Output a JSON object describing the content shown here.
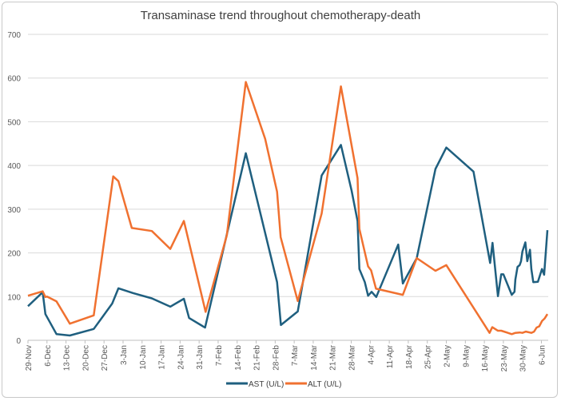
{
  "chart_data": {
    "type": "line",
    "title": "Transaminase trend throughout chemotherapy-death",
    "xlabel": "",
    "ylabel": "",
    "x_unit": "days since 29-Nov",
    "xlim": [
      0,
      191.5
    ],
    "ylim": [
      0,
      700
    ],
    "yticks": [
      0,
      100,
      200,
      300,
      400,
      500,
      600,
      700
    ],
    "xticks": [
      {
        "day": 0,
        "label": "29-Nov"
      },
      {
        "day": 7,
        "label": "6-Dec"
      },
      {
        "day": 14,
        "label": "13-Dec"
      },
      {
        "day": 21,
        "label": "20-Dec"
      },
      {
        "day": 28,
        "label": "27-Dec"
      },
      {
        "day": 35,
        "label": "3-Jan"
      },
      {
        "day": 42,
        "label": "10-Jan"
      },
      {
        "day": 49,
        "label": "17-Jan"
      },
      {
        "day": 56,
        "label": "24-Jan"
      },
      {
        "day": 63,
        "label": "31-Jan"
      },
      {
        "day": 70,
        "label": "7-Feb"
      },
      {
        "day": 77,
        "label": "14-Feb"
      },
      {
        "day": 84,
        "label": "21-Feb"
      },
      {
        "day": 91,
        "label": "28-Feb"
      },
      {
        "day": 98,
        "label": "7-Mar"
      },
      {
        "day": 105,
        "label": "14-Mar"
      },
      {
        "day": 112,
        "label": "21-Mar"
      },
      {
        "day": 119,
        "label": "28-Mar"
      },
      {
        "day": 126,
        "label": "4-Apr"
      },
      {
        "day": 133,
        "label": "11-Apr"
      },
      {
        "day": 140,
        "label": "18-Apr"
      },
      {
        "day": 147,
        "label": "25-Apr"
      },
      {
        "day": 154,
        "label": "2-May"
      },
      {
        "day": 161,
        "label": "9-May"
      },
      {
        "day": 168,
        "label": "16-May"
      },
      {
        "day": 175,
        "label": "23-May"
      },
      {
        "day": 182,
        "label": "30-May"
      },
      {
        "day": 189,
        "label": "6-Jun"
      }
    ],
    "grid": true,
    "legend_position": "bottom",
    "series": [
      {
        "name": "AST (U/L)",
        "color": "#1f5f7f",
        "points": [
          [
            0,
            78
          ],
          [
            5.4,
            110
          ],
          [
            6.4,
            60
          ],
          [
            10.5,
            14
          ],
          [
            15.4,
            11
          ],
          [
            24.2,
            26
          ],
          [
            31,
            84
          ],
          [
            33.3,
            119
          ],
          [
            38.7,
            108
          ],
          [
            45.6,
            96
          ],
          [
            52.4,
            77
          ],
          [
            57.4,
            95
          ],
          [
            59.3,
            51
          ],
          [
            65.2,
            29
          ],
          [
            80.2,
            428
          ],
          [
            91.7,
            133
          ],
          [
            93.1,
            35
          ],
          [
            99.3,
            66
          ],
          [
            108.1,
            377
          ],
          [
            115.2,
            447
          ],
          [
            119.1,
            343
          ],
          [
            121.3,
            273
          ],
          [
            122,
            163
          ],
          [
            124,
            133
          ],
          [
            125.2,
            102
          ],
          [
            126.5,
            111
          ],
          [
            128.2,
            99
          ],
          [
            136.3,
            219
          ],
          [
            138,
            130
          ],
          [
            143.1,
            188
          ],
          [
            150,
            392
          ],
          [
            154,
            441
          ],
          [
            164,
            386
          ],
          [
            170.1,
            177
          ],
          [
            171,
            223
          ],
          [
            173,
            101
          ],
          [
            174.2,
            151
          ],
          [
            175,
            151
          ],
          [
            178.1,
            104
          ],
          [
            179.1,
            111
          ],
          [
            179.4,
            139
          ],
          [
            180.2,
            168
          ],
          [
            181,
            172
          ],
          [
            181.5,
            181
          ],
          [
            182,
            203
          ],
          [
            183.1,
            224
          ],
          [
            183.8,
            181
          ],
          [
            184.8,
            207
          ],
          [
            185.3,
            163
          ],
          [
            186,
            133
          ],
          [
            187.7,
            134
          ],
          [
            189.2,
            163
          ],
          [
            190,
            150
          ],
          [
            191.2,
            252
          ]
        ]
      },
      {
        "name": "ALT (U/L)",
        "color": "#f07130",
        "points": [
          [
            0,
            102
          ],
          [
            5.4,
            112
          ],
          [
            6.4,
            99
          ],
          [
            7,
            100
          ],
          [
            10.5,
            89
          ],
          [
            15.4,
            38
          ],
          [
            24.2,
            57
          ],
          [
            31.4,
            375
          ],
          [
            33.3,
            364
          ],
          [
            38.2,
            257
          ],
          [
            45.6,
            250
          ],
          [
            52.4,
            209
          ],
          [
            57.4,
            273
          ],
          [
            65.4,
            65
          ],
          [
            73.2,
            240
          ],
          [
            80.2,
            591
          ],
          [
            87.3,
            461
          ],
          [
            91.7,
            340
          ],
          [
            93,
            236
          ],
          [
            99.3,
            90
          ],
          [
            108.1,
            290
          ],
          [
            115.2,
            581
          ],
          [
            121.3,
            371
          ],
          [
            122,
            255
          ],
          [
            125.2,
            169
          ],
          [
            126.3,
            160
          ],
          [
            128.1,
            118
          ],
          [
            138,
            104
          ],
          [
            143.1,
            188
          ],
          [
            150,
            159
          ],
          [
            154,
            172
          ],
          [
            169.9,
            17
          ],
          [
            170.9,
            30
          ],
          [
            173,
            22
          ],
          [
            174.2,
            22
          ],
          [
            178.1,
            14
          ],
          [
            179.4,
            17
          ],
          [
            181,
            18
          ],
          [
            182,
            17
          ],
          [
            183.3,
            20
          ],
          [
            185.3,
            17
          ],
          [
            186.3,
            20
          ],
          [
            187.2,
            29
          ],
          [
            188.2,
            32
          ],
          [
            189.2,
            44
          ],
          [
            190.2,
            50
          ],
          [
            191.2,
            60
          ]
        ]
      }
    ]
  }
}
